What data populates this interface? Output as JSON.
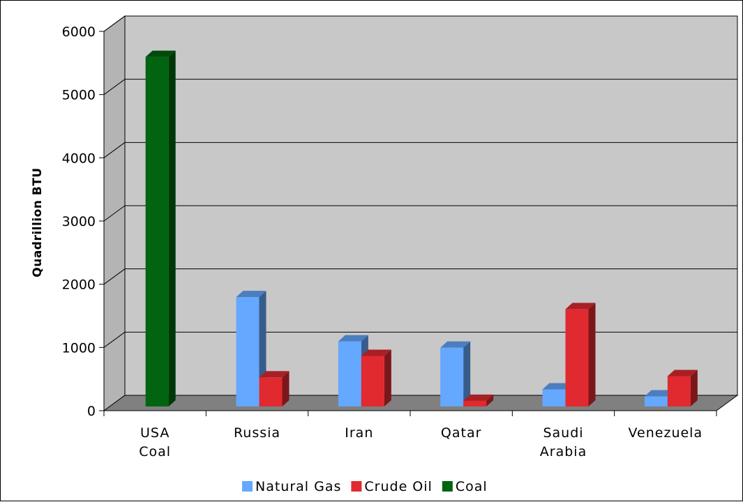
{
  "chart_data": {
    "type": "bar",
    "title": "",
    "ylabel": "Quadrillion BTU",
    "xlabel": "",
    "ylim": [
      0,
      6000
    ],
    "yticks": [
      0,
      1000,
      2000,
      3000,
      4000,
      5000,
      6000
    ],
    "grid": true,
    "legend_position": "bottom",
    "categories": [
      [
        "USA",
        "Coal"
      ],
      [
        "Russia"
      ],
      [
        "Iran"
      ],
      [
        "Qatar"
      ],
      [
        "Saudi",
        "Arabia"
      ],
      [
        "Venezuela"
      ]
    ],
    "series": [
      {
        "name": "Natural Gas",
        "color": "#64a8ff",
        "values": [
          null,
          1730,
          1030,
          930,
          270,
          160
        ]
      },
      {
        "name": "Crude Oil",
        "color": "#e02a30",
        "values": [
          null,
          460,
          800,
          90,
          1540,
          480
        ]
      },
      {
        "name": "Coal",
        "color": "#006410",
        "values": [
          5530,
          null,
          null,
          null,
          null,
          null
        ]
      }
    ],
    "colors": {
      "wall": "#c8c8c8",
      "floor": "#808080",
      "grid": "#000000"
    }
  }
}
